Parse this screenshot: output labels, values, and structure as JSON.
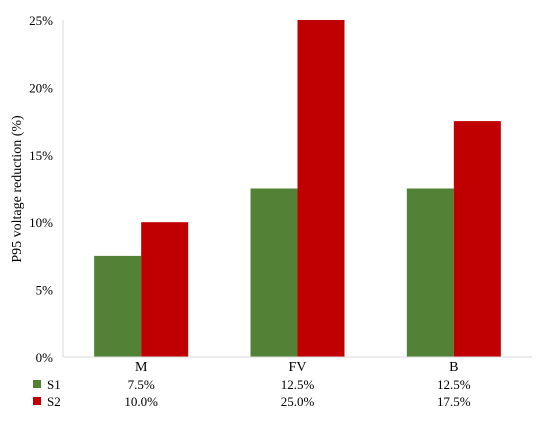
{
  "chart_data": {
    "type": "bar",
    "title": "",
    "xlabel": "",
    "ylabel": "P95 voltage reduction (%)",
    "categories": [
      "M",
      "FV",
      "B"
    ],
    "series": [
      {
        "name": "S1",
        "values": [
          7.5,
          12.5,
          12.5
        ],
        "labels": [
          "7.5%",
          "12.5%",
          "12.5%"
        ],
        "color": "#538135"
      },
      {
        "name": "S2",
        "values": [
          10.0,
          25.0,
          17.5
        ],
        "labels": [
          "10.0%",
          "25.0%",
          "17.5%"
        ],
        "color": "#c00000"
      }
    ],
    "ylim": [
      0,
      25
    ],
    "yticks": [
      "0%",
      "5%",
      "10%",
      "15%",
      "20%",
      "25%"
    ],
    "grid": false,
    "legend": "data-table-below"
  }
}
